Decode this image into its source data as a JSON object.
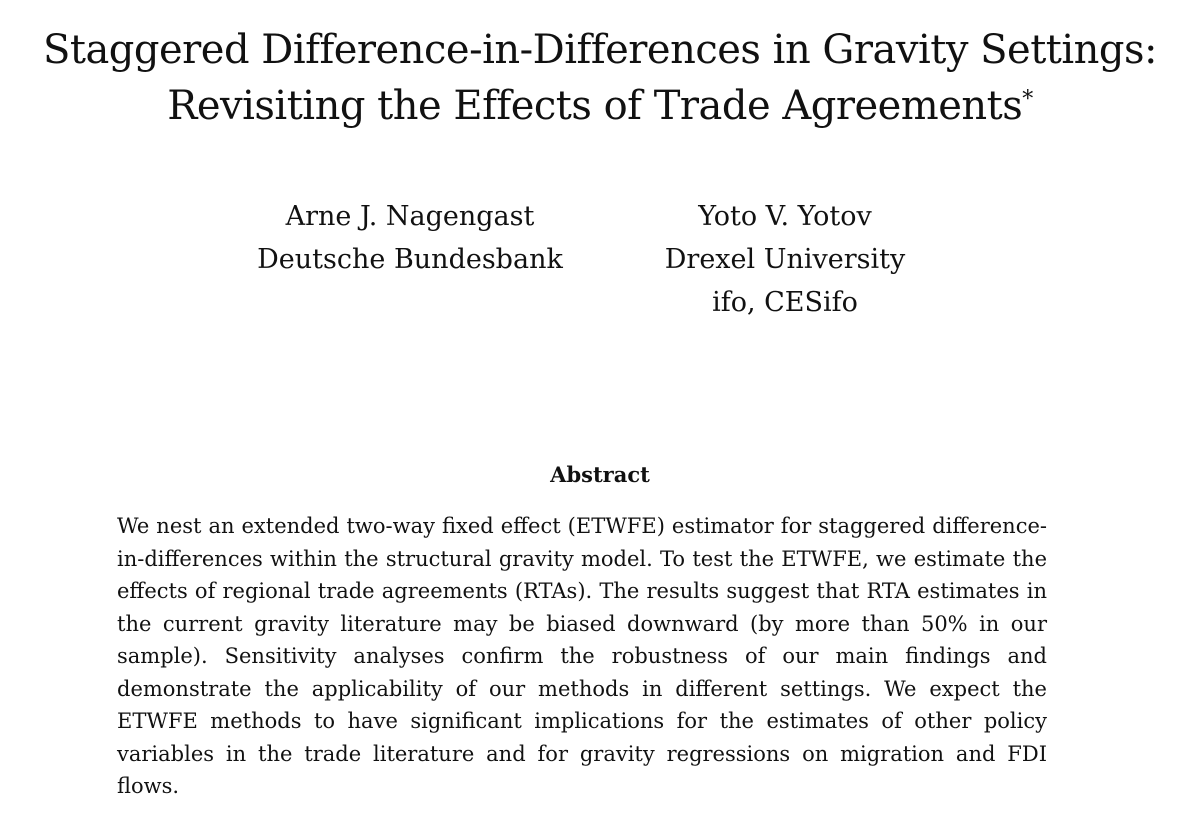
{
  "paper": {
    "title_line1": "Staggered Difference-in-Differences in Gravity Settings:",
    "title_line2": "Revisiting the Effects of Trade Agreements",
    "title_footnote_mark": "*",
    "authors": [
      {
        "name": "Arne J. Nagengast",
        "affiliations": [
          "Deutsche Bundesbank"
        ]
      },
      {
        "name": "Yoto V. Yotov",
        "affiliations": [
          "Drexel University",
          "ifo, CESifo"
        ]
      }
    ],
    "abstract_heading": "Abstract",
    "abstract_text": "We nest an extended two-way fixed effect (ETWFE) estimator for staggered difference-in-differences within the structural gravity model. To test the ETWFE, we estimate the effects of regional trade agreements (RTAs). The results suggest that RTA estimates in the current gravity literature may be biased downward (by more than 50% in our sample). Sensitivity analyses confirm the robustness of our main findings and demonstrate the applicability of our methods in different settings. We expect the ETWFE methods to have significant implications for the estimates of other policy variables in the trade literature and for gravity regressions on migration and FDI flows."
  }
}
